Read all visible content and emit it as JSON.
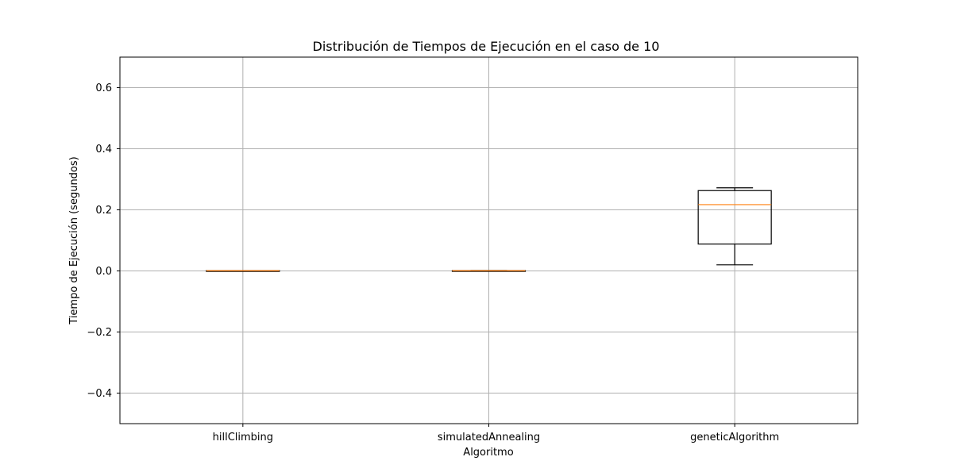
{
  "chart_data": {
    "type": "boxplot",
    "title": "Distribución de Tiempos de Ejecución en el caso de 10",
    "xlabel": "Algoritmo",
    "ylabel": "Tiempo de Ejecución (segundos)",
    "ylim": [
      -0.5,
      0.7
    ],
    "yticks": [
      -0.4,
      -0.2,
      0.0,
      0.2,
      0.4,
      0.6
    ],
    "ytick_labels": [
      "−0.4",
      "−0.2",
      "0.0",
      "0.2",
      "0.4",
      "0.6"
    ],
    "categories": [
      "hillClimbing",
      "simulatedAnnealing",
      "geneticAlgorithm"
    ],
    "boxes": [
      {
        "category": "hillClimbing",
        "whisker_low": 0.0002,
        "q1": 0.0004,
        "median": 0.0006,
        "q3": 0.001,
        "whisker_high": 0.0012
      },
      {
        "category": "simulatedAnnealing",
        "whisker_low": 0.0003,
        "q1": 0.0005,
        "median": 0.0007,
        "q3": 0.0011,
        "whisker_high": 0.0013
      },
      {
        "category": "geneticAlgorithm",
        "whisker_low": 0.02,
        "q1": 0.088,
        "median": 0.217,
        "q3": 0.263,
        "whisker_high": 0.272
      }
    ],
    "grid": true,
    "colors": {
      "box": "#000000",
      "median": "#ff7f0e",
      "grid": "#b0b0b0"
    }
  }
}
